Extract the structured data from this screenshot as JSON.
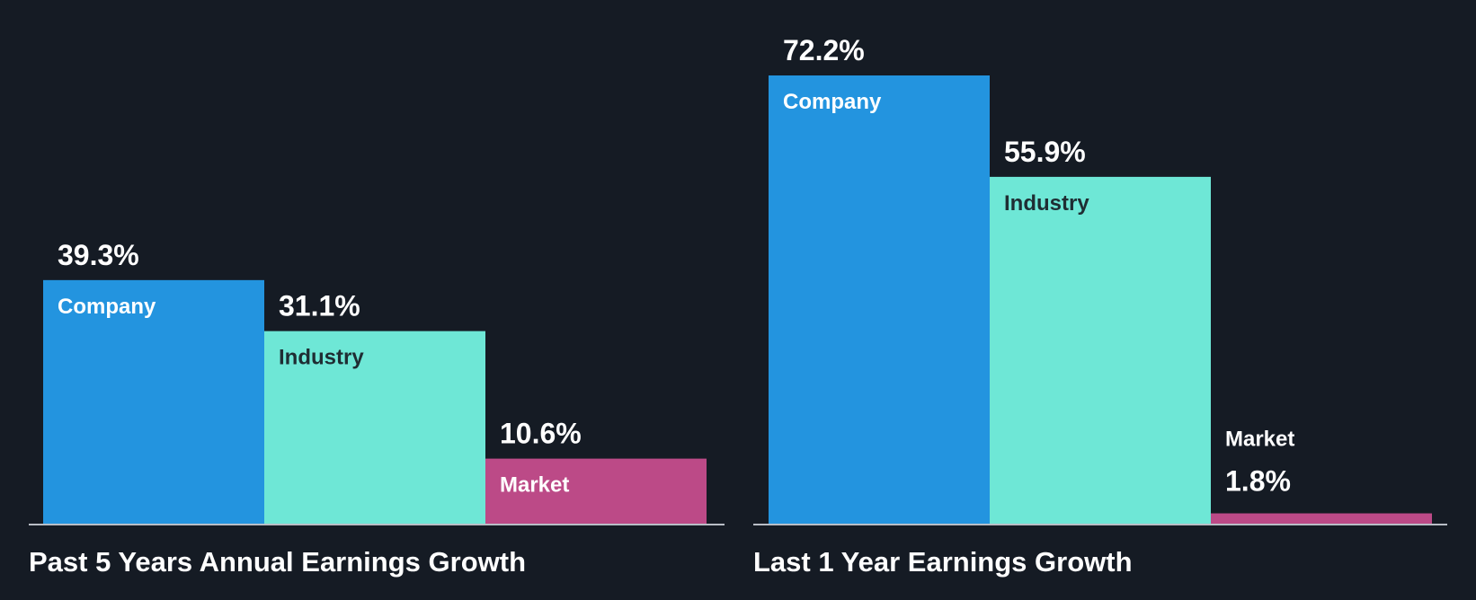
{
  "chart_data": [
    {
      "type": "bar",
      "title": "Past 5 Years Annual Earnings Growth",
      "categories": [
        "Company",
        "Industry",
        "Market"
      ],
      "values": [
        39.3,
        31.1,
        10.6
      ],
      "value_labels": [
        "39.3%",
        "31.1%",
        "10.6%"
      ],
      "unit": "%",
      "ylim": [
        0,
        72.2
      ],
      "colors": [
        "#2394df",
        "#6ee7d6",
        "#bc4a87"
      ]
    },
    {
      "type": "bar",
      "title": "Last 1 Year Earnings Growth",
      "categories": [
        "Company",
        "Industry",
        "Market"
      ],
      "values": [
        72.2,
        55.9,
        1.8
      ],
      "value_labels": [
        "72.2%",
        "55.9%",
        "1.8%"
      ],
      "unit": "%",
      "ylim": [
        0,
        72.2
      ],
      "colors": [
        "#2394df",
        "#6ee7d6",
        "#bc4a87"
      ]
    }
  ]
}
